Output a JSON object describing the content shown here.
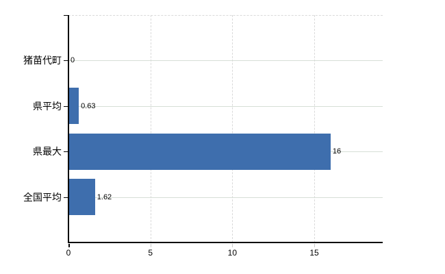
{
  "chart_data": {
    "type": "bar",
    "orientation": "horizontal",
    "title": "",
    "xlabel": "",
    "ylabel": "",
    "categories": [
      "猪苗代町",
      "県平均",
      "県最大",
      "全国平均"
    ],
    "values": [
      0,
      0.63,
      16,
      1.62
    ],
    "value_labels": [
      "0",
      "0.63",
      "16",
      "1.62"
    ],
    "x_ticks": [
      0,
      5,
      10,
      15
    ],
    "x_tick_labels": [
      "0",
      "5",
      "10",
      "15"
    ],
    "xlim": [
      0,
      19.18
    ],
    "grid": "on",
    "legend": "none",
    "colors": {
      "bar": "#3e6ead",
      "axis": "#000000",
      "gridline_horizontal": "#d6ded6",
      "gridline_vertical": "#d9d9d9",
      "text": "#000000",
      "background": "#ffffff"
    }
  }
}
